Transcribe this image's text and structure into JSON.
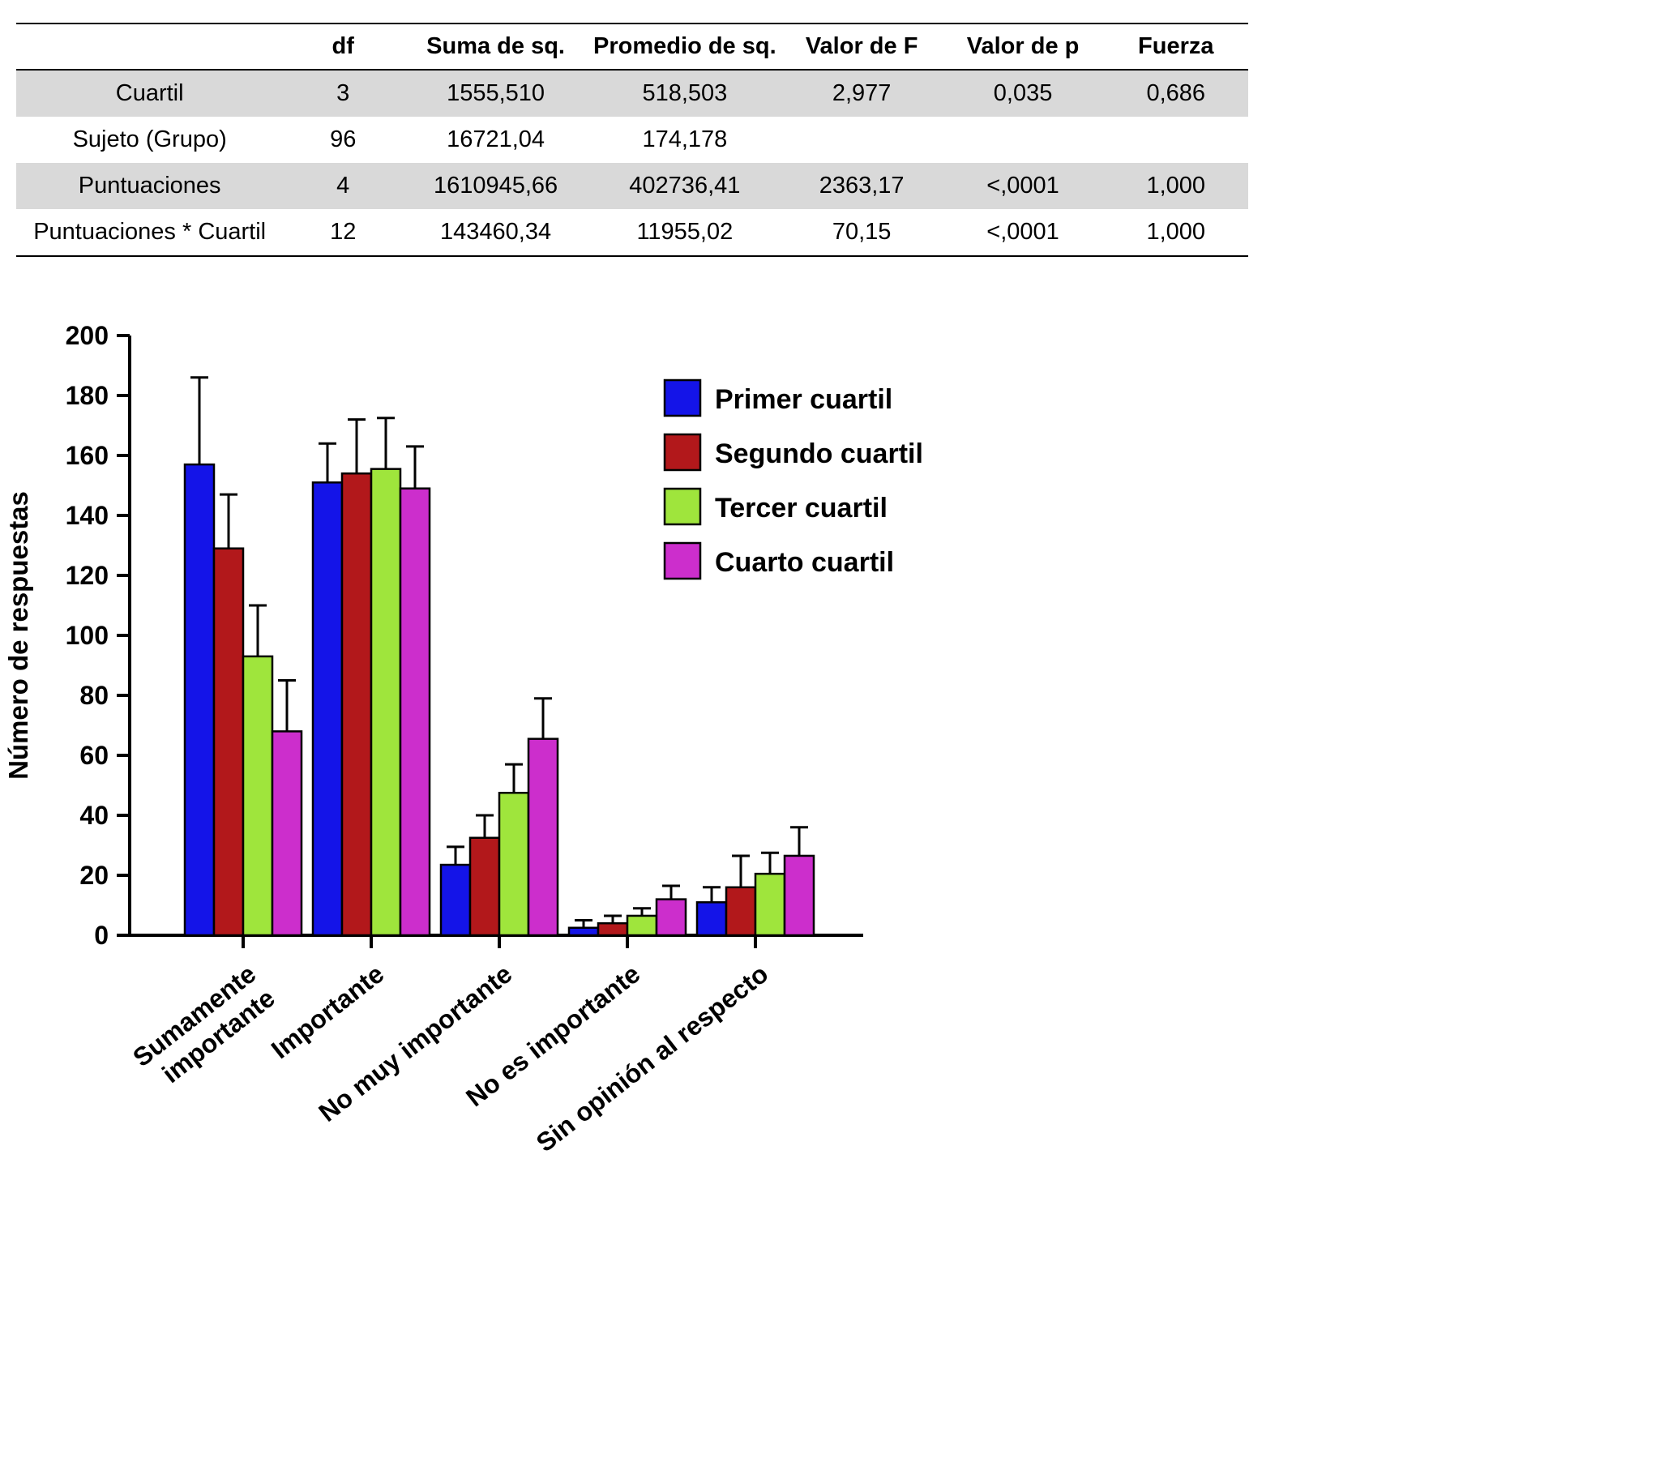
{
  "table": {
    "headers": [
      "",
      "df",
      "Suma de sq.",
      "Promedio de sq.",
      "Valor de F",
      "Valor de p",
      "Fuerza"
    ],
    "rows": [
      [
        "Cuartil",
        "3",
        "1555,510",
        "518,503",
        "2,977",
        "0,035",
        "0,686"
      ],
      [
        "Sujeto (Grupo)",
        "96",
        "16721,04",
        "174,178",
        "",
        "",
        ""
      ],
      [
        "Puntuaciones",
        "4",
        "1610945,66",
        "402736,41",
        "2363,17",
        "<,0001",
        "1,000"
      ],
      [
        "Puntuaciones * Cuartil",
        "12",
        "143460,34",
        "11955,02",
        "70,15",
        "<,0001",
        "1,000"
      ]
    ],
    "shaded_row_color": "#D9D9D9"
  },
  "chart_data": {
    "type": "bar",
    "title": "",
    "xlabel": "",
    "ylabel": "Número de respuestas",
    "ylim": [
      0,
      200
    ],
    "ytick_step": 20,
    "grid": false,
    "legend_position": "upper right",
    "error_bars": "upper",
    "categories": [
      "Sumamente\nimportante",
      "Importante",
      "No muy importante",
      "No es importante",
      "Sin opinión al respecto"
    ],
    "series": [
      {
        "name": "Primer cuartil",
        "color": "#1414E8",
        "values": [
          157,
          151,
          23.5,
          2.5,
          11
        ],
        "errors": [
          29,
          13,
          6,
          2.5,
          5
        ]
      },
      {
        "name": "Segundo cuartil",
        "color": "#B2181B",
        "values": [
          129,
          154,
          32.5,
          4,
          16
        ],
        "errors": [
          18,
          18,
          7.5,
          2.5,
          10.5
        ]
      },
      {
        "name": "Tercer cuartil",
        "color": "#9FE53C",
        "values": [
          93,
          155.5,
          47.5,
          6.5,
          20.5
        ],
        "errors": [
          17,
          17,
          9.5,
          2.5,
          7
        ]
      },
      {
        "name": "Cuarto cuartil",
        "color": "#CC2ECC",
        "values": [
          68,
          149,
          65.5,
          12,
          26.5
        ],
        "errors": [
          17,
          14,
          13.5,
          4.5,
          9.5
        ]
      }
    ]
  }
}
